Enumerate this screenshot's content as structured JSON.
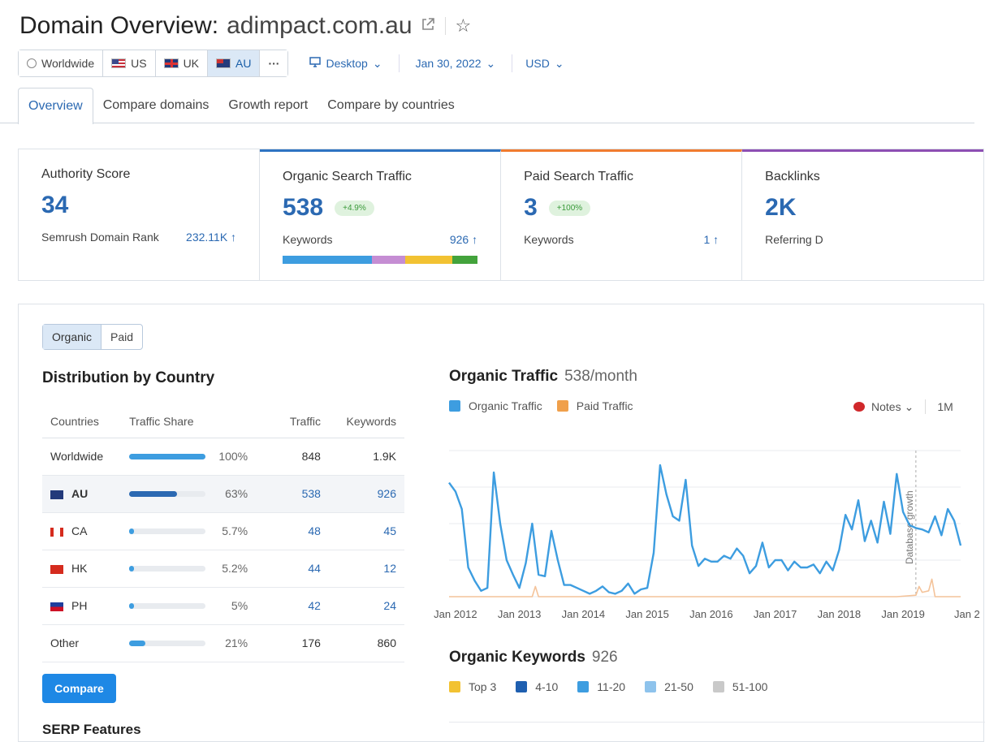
{
  "header": {
    "title": "Domain Overview:",
    "domain": "adimpact.com.au"
  },
  "databases": [
    {
      "label": "Worldwide",
      "flag": "globe",
      "active": false
    },
    {
      "label": "US",
      "flag": "us",
      "active": false
    },
    {
      "label": "UK",
      "flag": "uk",
      "active": false
    },
    {
      "label": "AU",
      "flag": "au",
      "active": true
    },
    {
      "label": "···",
      "flag": "",
      "active": false
    }
  ],
  "filters": {
    "device": "Desktop",
    "date": "Jan 30, 2022",
    "currency": "USD"
  },
  "tabs": [
    "Overview",
    "Compare domains",
    "Growth report",
    "Compare by countries"
  ],
  "kpis": {
    "authority": {
      "label": "Authority Score",
      "value": "34",
      "sub_label": "Semrush Domain Rank",
      "sub_value": "232.11K ↑"
    },
    "organic": {
      "label": "Organic Search Traffic",
      "value": "538",
      "change": "+4.9%",
      "sub_label": "Keywords",
      "sub_value": "926 ↑"
    },
    "paid": {
      "label": "Paid Search Traffic",
      "value": "3",
      "change": "+100%",
      "sub_label": "Keywords",
      "sub_value": "1 ↑"
    },
    "backlinks": {
      "label": "Backlinks",
      "value": "2K",
      "sub_label": "Referring D"
    }
  },
  "keyword_bar": {
    "shares": [
      0.46,
      0.17,
      0.24,
      0.13
    ],
    "colors": [
      "#3d9de0",
      "#c58dd3",
      "#f2c232",
      "#43a33c"
    ]
  },
  "toggle": {
    "organic": "Organic",
    "paid": "Paid"
  },
  "distribution": {
    "title": "Distribution by Country",
    "columns": [
      "Countries",
      "Traffic Share",
      "Traffic",
      "Keywords"
    ],
    "rows": [
      {
        "country": "Worldwide",
        "flag": "",
        "share": 1.0,
        "pct": "100%",
        "traffic": "848",
        "keywords": "1.9K",
        "bar_color": "#3d9de0"
      },
      {
        "country": "AU",
        "flag": "au",
        "share": 0.63,
        "pct": "63%",
        "traffic": "538",
        "keywords": "926",
        "bar_color": "#2b69b2"
      },
      {
        "country": "CA",
        "flag": "ca",
        "share": 0.057,
        "pct": "5.7%",
        "traffic": "48",
        "keywords": "45",
        "bar_color": "#3d9de0"
      },
      {
        "country": "HK",
        "flag": "hk",
        "share": 0.052,
        "pct": "5.2%",
        "traffic": "44",
        "keywords": "12",
        "bar_color": "#3d9de0"
      },
      {
        "country": "PH",
        "flag": "ph",
        "share": 0.05,
        "pct": "5%",
        "traffic": "42",
        "keywords": "24",
        "bar_color": "#3d9de0"
      },
      {
        "country": "Other",
        "flag": "",
        "share": 0.21,
        "pct": "21%",
        "traffic": "176",
        "keywords": "860",
        "bar_color": "#3d9de0"
      }
    ],
    "compare_label": "Compare",
    "next_section": "SERP Features"
  },
  "organic_traffic": {
    "title": "Organic Traffic",
    "subtitle": "538/month",
    "legend": [
      "Organic Traffic",
      "Paid Traffic"
    ],
    "notes_label": "Notes",
    "period_label": "1M",
    "annotation": "Database growth"
  },
  "organic_keywords": {
    "title": "Organic Keywords",
    "count": "926",
    "legend": [
      "Top 3",
      "4-10",
      "11-20",
      "21-50",
      "51-100"
    ],
    "legend_colors": [
      "#f2c232",
      "#1f5fb0",
      "#3d9de0",
      "#8ec3ec",
      "#c9c9c9"
    ]
  },
  "chart_data": {
    "type": "line",
    "x_tick_labels": [
      "Jan 2012",
      "Jan 2013",
      "Jan 2014",
      "Jan 2015",
      "Jan 2016",
      "Jan 2017",
      "Jan 2018",
      "Jan 2019",
      "Jan 2"
    ],
    "x_domain": [
      2011.9,
      2019.9
    ],
    "y_domain": [
      0,
      1000
    ],
    "grid": true,
    "series": [
      {
        "name": "Organic Traffic",
        "color": "#3d9de0",
        "x": [
          2011.9,
          2012.0,
          2012.1,
          2012.2,
          2012.3,
          2012.4,
          2012.5,
          2012.6,
          2012.7,
          2012.8,
          2012.9,
          2013.0,
          2013.1,
          2013.2,
          2013.3,
          2013.4,
          2013.5,
          2013.6,
          2013.7,
          2013.8,
          2013.9,
          2014.0,
          2014.1,
          2014.2,
          2014.3,
          2014.4,
          2014.5,
          2014.6,
          2014.7,
          2014.8,
          2014.9,
          2015.0,
          2015.1,
          2015.2,
          2015.3,
          2015.4,
          2015.5,
          2015.6,
          2015.7,
          2015.8,
          2015.9,
          2016.0,
          2016.1,
          2016.2,
          2016.3,
          2016.4,
          2016.5,
          2016.6,
          2016.7,
          2016.8,
          2016.9,
          2017.0,
          2017.1,
          2017.2,
          2017.3,
          2017.4,
          2017.5,
          2017.6,
          2017.7,
          2017.8,
          2017.9,
          2018.0,
          2018.1,
          2018.2,
          2018.3,
          2018.4,
          2018.5,
          2018.6,
          2018.7,
          2018.8,
          2018.9,
          2019.0,
          2019.1,
          2019.2,
          2019.3,
          2019.4,
          2019.5,
          2019.6,
          2019.7,
          2019.8,
          2019.9
        ],
        "y": [
          780,
          720,
          600,
          200,
          110,
          40,
          60,
          850,
          500,
          250,
          150,
          60,
          230,
          500,
          150,
          140,
          450,
          250,
          80,
          80,
          60,
          40,
          20,
          40,
          70,
          30,
          20,
          40,
          90,
          20,
          50,
          60,
          300,
          900,
          700,
          550,
          520,
          800,
          350,
          210,
          260,
          240,
          240,
          280,
          260,
          330,
          280,
          160,
          210,
          370,
          200,
          250,
          250,
          180,
          240,
          200,
          200,
          220,
          160,
          240,
          180,
          320,
          560,
          460,
          660,
          380,
          520,
          370,
          650,
          430,
          840,
          580,
          490,
          470,
          460,
          440,
          550,
          420,
          600,
          520,
          350
        ]
      },
      {
        "name": "Paid Traffic",
        "color": "#f4c39a",
        "x": [
          2011.9,
          2012.8,
          2013.2,
          2013.25,
          2013.3,
          2014.0,
          2015.0,
          2016.0,
          2017.0,
          2018.0,
          2018.9,
          2019.2,
          2019.25,
          2019.3,
          2019.4,
          2019.45,
          2019.5,
          2019.9
        ],
        "y": [
          0,
          0,
          0,
          70,
          0,
          0,
          0,
          0,
          0,
          0,
          0,
          10,
          70,
          30,
          40,
          120,
          0,
          0
        ]
      }
    ]
  }
}
